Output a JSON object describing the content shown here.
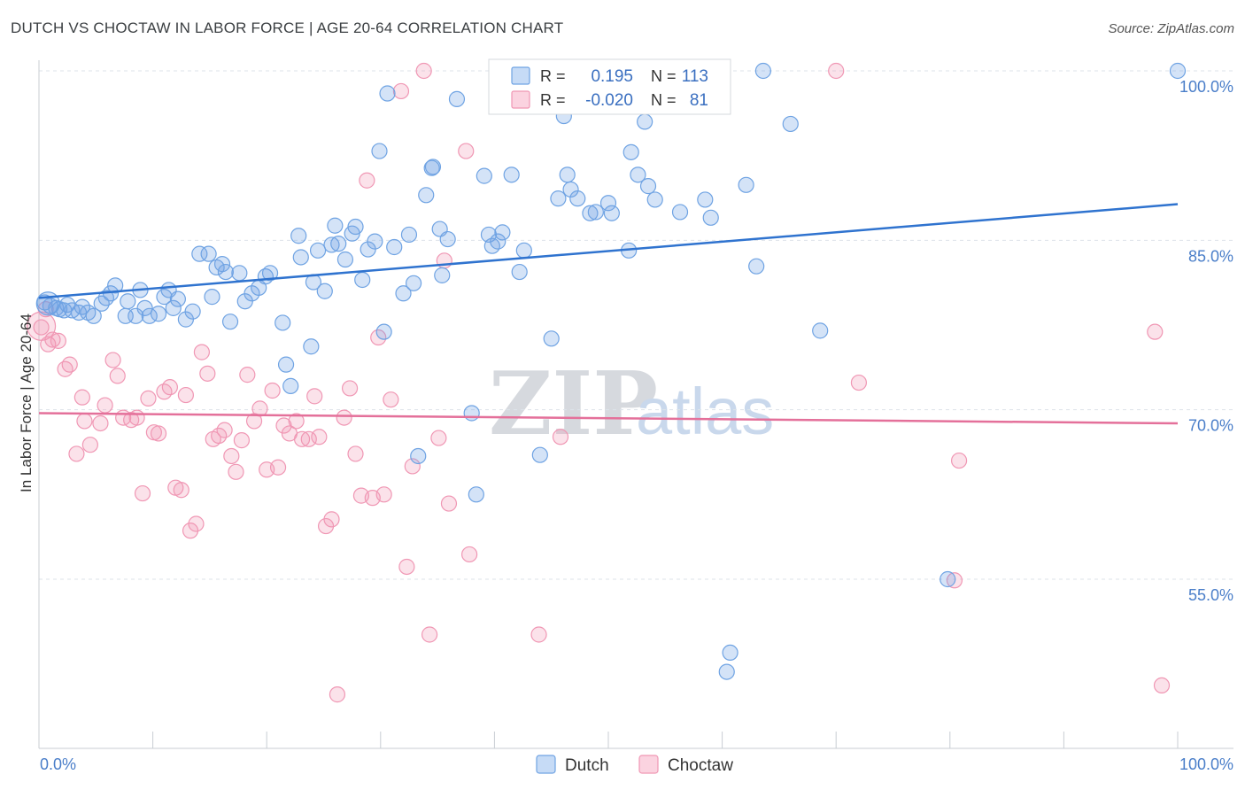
{
  "title": "DUTCH VS CHOCTAW IN LABOR FORCE | AGE 20-64 CORRELATION CHART",
  "source": "Source: ZipAtlas.com",
  "watermark": {
    "zip": "ZIP",
    "atlas": "atlas"
  },
  "colors": {
    "dutch": "#6fa3e3",
    "dutch_line": "#2f73cf",
    "choctaw": "#f097b4",
    "choctaw_line": "#e4709a",
    "tick_text": "#4a7ec9",
    "grid": "#dde3ea"
  },
  "legend": {
    "rows": [
      {
        "r_label": "R =",
        "r_value": "0.195",
        "n_label": "N =",
        "n_value": "113"
      },
      {
        "r_label": "R =",
        "r_value": "-0.020",
        "n_label": "N =",
        "n_value": "81"
      }
    ]
  },
  "chart_data": {
    "type": "scatter",
    "title": "DUTCH VS CHOCTAW IN LABOR FORCE | AGE 20-64 CORRELATION CHART",
    "xlabel": "",
    "ylabel": "In Labor Force | Age 20-64",
    "xlim": [
      0,
      100
    ],
    "ylim": [
      41,
      101
    ],
    "x_tick_labels": [
      "0.0%",
      "100.0%"
    ],
    "y_ticks": [
      55,
      70,
      85,
      100
    ],
    "y_tick_labels": [
      "55.0%",
      "70.0%",
      "85.0%",
      "100.0%"
    ],
    "grid": true,
    "legend_position": "bottom",
    "series": [
      {
        "name": "Dutch",
        "trend": [
          [
            0,
            79.9
          ],
          [
            100,
            88.2
          ]
        ],
        "points": [
          [
            0.5,
            79.5
          ],
          [
            1.0,
            79.2
          ],
          [
            1.5,
            79.0
          ],
          [
            2.2,
            78.8
          ],
          [
            2.5,
            79.3
          ],
          [
            3.5,
            78.6
          ],
          [
            3.8,
            79.1
          ],
          [
            4.3,
            78.6
          ],
          [
            4.8,
            78.3
          ],
          [
            5.5,
            79.4
          ],
          [
            5.9,
            79.9
          ],
          [
            6.3,
            80.3
          ],
          [
            6.7,
            81.0
          ],
          [
            7.6,
            78.3
          ],
          [
            7.8,
            79.6
          ],
          [
            8.5,
            78.3
          ],
          [
            8.9,
            80.6
          ],
          [
            9.3,
            79.0
          ],
          [
            9.7,
            78.3
          ],
          [
            10.5,
            78.5
          ],
          [
            11.0,
            80.0
          ],
          [
            11.4,
            80.6
          ],
          [
            11.8,
            79.0
          ],
          [
            12.2,
            79.8
          ],
          [
            12.9,
            78.0
          ],
          [
            13.5,
            78.7
          ],
          [
            14.1,
            83.8
          ],
          [
            14.9,
            83.8
          ],
          [
            15.2,
            80.0
          ],
          [
            15.6,
            82.6
          ],
          [
            16.1,
            82.9
          ],
          [
            16.4,
            82.2
          ],
          [
            16.8,
            77.8
          ],
          [
            17.6,
            82.1
          ],
          [
            18.1,
            79.6
          ],
          [
            18.7,
            80.3
          ],
          [
            19.3,
            80.8
          ],
          [
            19.9,
            81.8
          ],
          [
            20.3,
            82.1
          ],
          [
            21.4,
            77.7
          ],
          [
            21.7,
            74.0
          ],
          [
            22.1,
            72.1
          ],
          [
            22.8,
            85.4
          ],
          [
            23.0,
            83.5
          ],
          [
            23.9,
            75.6
          ],
          [
            24.1,
            81.3
          ],
          [
            24.5,
            84.1
          ],
          [
            25.1,
            80.5
          ],
          [
            25.7,
            84.6
          ],
          [
            26.0,
            86.3
          ],
          [
            26.3,
            84.7
          ],
          [
            26.9,
            83.3
          ],
          [
            27.5,
            85.6
          ],
          [
            27.8,
            86.2
          ],
          [
            28.4,
            81.5
          ],
          [
            28.9,
            84.2
          ],
          [
            29.5,
            84.9
          ],
          [
            30.3,
            76.9
          ],
          [
            30.6,
            98.0
          ],
          [
            31.2,
            84.4
          ],
          [
            32.0,
            80.3
          ],
          [
            32.5,
            85.5
          ],
          [
            32.9,
            81.2
          ],
          [
            33.3,
            65.9
          ],
          [
            34.0,
            89.0
          ],
          [
            34.6,
            91.5
          ],
          [
            35.2,
            86.0
          ],
          [
            35.4,
            81.9
          ],
          [
            35.9,
            85.1
          ],
          [
            36.7,
            97.5
          ],
          [
            38.0,
            69.7
          ],
          [
            38.4,
            62.5
          ],
          [
            39.1,
            90.7
          ],
          [
            39.5,
            85.5
          ],
          [
            39.8,
            84.5
          ],
          [
            40.3,
            84.9
          ],
          [
            40.7,
            85.7
          ],
          [
            41.5,
            90.8
          ],
          [
            42.2,
            82.2
          ],
          [
            42.6,
            84.1
          ],
          [
            44.0,
            66.0
          ],
          [
            45.0,
            76.3
          ],
          [
            45.6,
            88.7
          ],
          [
            46.1,
            96.0
          ],
          [
            46.4,
            90.8
          ],
          [
            46.7,
            89.5
          ],
          [
            47.3,
            88.7
          ],
          [
            48.4,
            87.4
          ],
          [
            48.9,
            87.5
          ],
          [
            50.0,
            88.3
          ],
          [
            50.3,
            87.4
          ],
          [
            51.8,
            84.1
          ],
          [
            52.0,
            92.8
          ],
          [
            52.6,
            90.8
          ],
          [
            53.2,
            95.5
          ],
          [
            53.5,
            89.8
          ],
          [
            54.1,
            88.6
          ],
          [
            56.3,
            87.5
          ],
          [
            58.5,
            88.6
          ],
          [
            59.0,
            87.0
          ],
          [
            60.7,
            48.5
          ],
          [
            60.4,
            46.8
          ],
          [
            62.1,
            89.9
          ],
          [
            63.0,
            82.7
          ],
          [
            63.6,
            100.0
          ],
          [
            66.0,
            95.3
          ],
          [
            68.6,
            77.0
          ],
          [
            79.8,
            55.0
          ],
          [
            100.0,
            100.0
          ],
          [
            34.5,
            91.4
          ],
          [
            29.9,
            92.9
          ],
          [
            1.8,
            78.9
          ],
          [
            2.9,
            78.8
          ]
        ]
      },
      {
        "name": "Choctaw",
        "trend": [
          [
            0,
            69.7
          ],
          [
            100,
            68.8
          ]
        ],
        "points": [
          [
            0.2,
            77.3
          ],
          [
            0.6,
            78.9
          ],
          [
            0.8,
            75.8
          ],
          [
            1.2,
            76.2
          ],
          [
            1.7,
            76.1
          ],
          [
            2.3,
            73.6
          ],
          [
            2.7,
            74.0
          ],
          [
            3.3,
            66.1
          ],
          [
            3.8,
            71.1
          ],
          [
            4.0,
            69.0
          ],
          [
            4.5,
            66.9
          ],
          [
            5.4,
            68.8
          ],
          [
            5.8,
            70.4
          ],
          [
            6.5,
            74.4
          ],
          [
            6.9,
            73.0
          ],
          [
            7.4,
            69.3
          ],
          [
            8.1,
            69.1
          ],
          [
            8.6,
            69.3
          ],
          [
            9.1,
            62.6
          ],
          [
            9.6,
            71.0
          ],
          [
            10.1,
            68.0
          ],
          [
            10.5,
            67.9
          ],
          [
            11.0,
            71.6
          ],
          [
            11.5,
            72.0
          ],
          [
            12.0,
            63.1
          ],
          [
            12.5,
            62.9
          ],
          [
            12.9,
            71.3
          ],
          [
            13.3,
            59.3
          ],
          [
            13.8,
            59.9
          ],
          [
            14.3,
            75.1
          ],
          [
            14.8,
            73.2
          ],
          [
            15.3,
            67.4
          ],
          [
            15.8,
            67.7
          ],
          [
            16.3,
            68.2
          ],
          [
            16.9,
            65.9
          ],
          [
            17.3,
            64.5
          ],
          [
            17.8,
            67.3
          ],
          [
            18.3,
            73.1
          ],
          [
            18.9,
            69.0
          ],
          [
            19.4,
            70.1
          ],
          [
            20.0,
            64.7
          ],
          [
            20.5,
            71.7
          ],
          [
            21.0,
            64.9
          ],
          [
            21.5,
            68.6
          ],
          [
            22.0,
            67.9
          ],
          [
            22.6,
            69.0
          ],
          [
            23.1,
            67.4
          ],
          [
            23.7,
            67.4
          ],
          [
            24.2,
            71.2
          ],
          [
            24.6,
            67.6
          ],
          [
            25.2,
            59.7
          ],
          [
            25.7,
            60.3
          ],
          [
            26.2,
            44.8
          ],
          [
            26.8,
            69.3
          ],
          [
            27.3,
            71.9
          ],
          [
            27.8,
            66.1
          ],
          [
            28.3,
            62.4
          ],
          [
            28.8,
            90.3
          ],
          [
            29.3,
            62.2
          ],
          [
            29.8,
            76.4
          ],
          [
            30.3,
            62.5
          ],
          [
            30.9,
            70.9
          ],
          [
            31.8,
            98.2
          ],
          [
            32.3,
            56.1
          ],
          [
            32.8,
            65.0
          ],
          [
            33.8,
            100.0
          ],
          [
            34.3,
            50.1
          ],
          [
            35.1,
            67.5
          ],
          [
            35.6,
            83.2
          ],
          [
            36.0,
            61.7
          ],
          [
            37.5,
            92.9
          ],
          [
            37.8,
            57.2
          ],
          [
            43.9,
            50.1
          ],
          [
            45.8,
            67.6
          ],
          [
            50.3,
            100.0
          ],
          [
            70.0,
            100.0
          ],
          [
            72.0,
            72.4
          ],
          [
            80.4,
            54.9
          ],
          [
            80.8,
            65.5
          ],
          [
            98.0,
            76.9
          ],
          [
            98.6,
            45.6
          ]
        ]
      }
    ]
  },
  "bottom_legend": [
    "Dutch",
    "Choctaw"
  ]
}
